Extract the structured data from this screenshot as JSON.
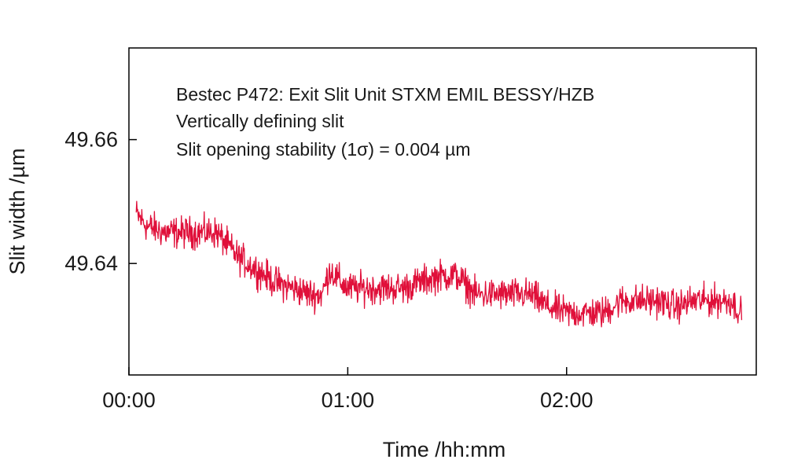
{
  "chart_data": {
    "type": "line",
    "title": "",
    "xlabel": "Time /hh:mm",
    "ylabel": "Slit width /µm",
    "x_unit": "hh:mm",
    "xlim": [
      "00:00",
      "02:52"
    ],
    "ylim": [
      49.622,
      49.6748
    ],
    "x_ticks": [
      "00:00",
      "01:00",
      "02:00"
    ],
    "y_ticks": [
      "49.64",
      "49.66"
    ],
    "grid": false,
    "legend": "none",
    "annotations": [
      "Bestec P472: Exit Slit Unit STXM EMIL BESSY/HZB",
      "Vertically defining slit",
      "Slit opening stability (1σ) = 0.004 µm"
    ],
    "colors": {
      "series": "#e0103a",
      "axes": "#000000"
    },
    "series": [
      {
        "x": [
          "00:02",
          "00:05",
          "00:10",
          "00:15",
          "00:20",
          "00:24",
          "00:27",
          "00:30",
          "00:35",
          "00:40",
          "00:45",
          "00:50",
          "00:53",
          "00:55",
          "00:58",
          "01:00",
          "01:05",
          "01:10",
          "01:15",
          "01:20",
          "01:25",
          "01:30",
          "01:35",
          "01:40",
          "01:45",
          "01:50",
          "01:55",
          "02:00",
          "02:05",
          "02:10",
          "02:15",
          "02:20",
          "02:25",
          "02:30",
          "02:35",
          "02:40",
          "02:45",
          "02:48"
        ],
        "values": [
          49.648,
          49.646,
          49.645,
          49.645,
          49.645,
          49.645,
          49.643,
          49.641,
          49.639,
          49.637,
          49.636,
          49.635,
          49.635,
          49.639,
          49.637,
          49.636,
          49.636,
          49.636,
          49.636,
          49.637,
          49.638,
          49.638,
          49.635,
          49.635,
          49.635,
          49.635,
          49.633,
          49.632,
          49.632,
          49.632,
          49.634,
          49.634,
          49.634,
          49.633,
          49.634,
          49.634,
          49.634,
          49.632
        ]
      }
    ]
  }
}
